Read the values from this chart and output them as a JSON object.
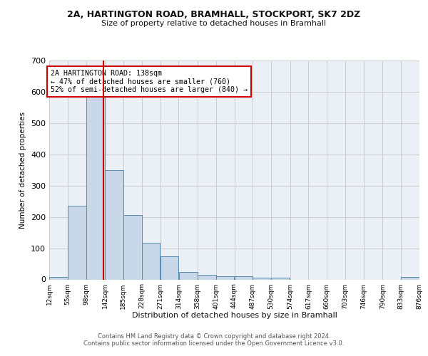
{
  "title_line1": "2A, HARTINGTON ROAD, BRAMHALL, STOCKPORT, SK7 2DZ",
  "title_line2": "Size of property relative to detached houses in Bramhall",
  "xlabel": "Distribution of detached houses by size in Bramhall",
  "ylabel": "Number of detached properties",
  "bin_edges": [
    12,
    55,
    98,
    142,
    185,
    228,
    271,
    314,
    358,
    401,
    444,
    487,
    530,
    574,
    617,
    660,
    703,
    746,
    790,
    833,
    876
  ],
  "bin_labels": [
    "12sqm",
    "55sqm",
    "98sqm",
    "142sqm",
    "185sqm",
    "228sqm",
    "271sqm",
    "314sqm",
    "358sqm",
    "401sqm",
    "444sqm",
    "487sqm",
    "530sqm",
    "574sqm",
    "617sqm",
    "660sqm",
    "703sqm",
    "746sqm",
    "790sqm",
    "833sqm",
    "876sqm"
  ],
  "bar_heights": [
    8,
    235,
    590,
    350,
    205,
    118,
    75,
    25,
    15,
    10,
    10,
    5,
    5,
    0,
    0,
    0,
    0,
    0,
    0,
    8
  ],
  "bar_color": "#c8d8e8",
  "bar_edgecolor": "#5a8ab0",
  "vline_x": 138,
  "vline_color": "#cc0000",
  "ylim": [
    0,
    700
  ],
  "yticks": [
    0,
    100,
    200,
    300,
    400,
    500,
    600,
    700
  ],
  "annotation_text": "2A HARTINGTON ROAD: 138sqm\n← 47% of detached houses are smaller (760)\n52% of semi-detached houses are larger (840) →",
  "annotation_box_edgecolor": "#cc0000",
  "footer_text": "Contains HM Land Registry data © Crown copyright and database right 2024.\nContains public sector information licensed under the Open Government Licence v3.0.",
  "bg_color": "#ffffff",
  "grid_color": "#cccccc",
  "ax_facecolor": "#eaf0f6"
}
